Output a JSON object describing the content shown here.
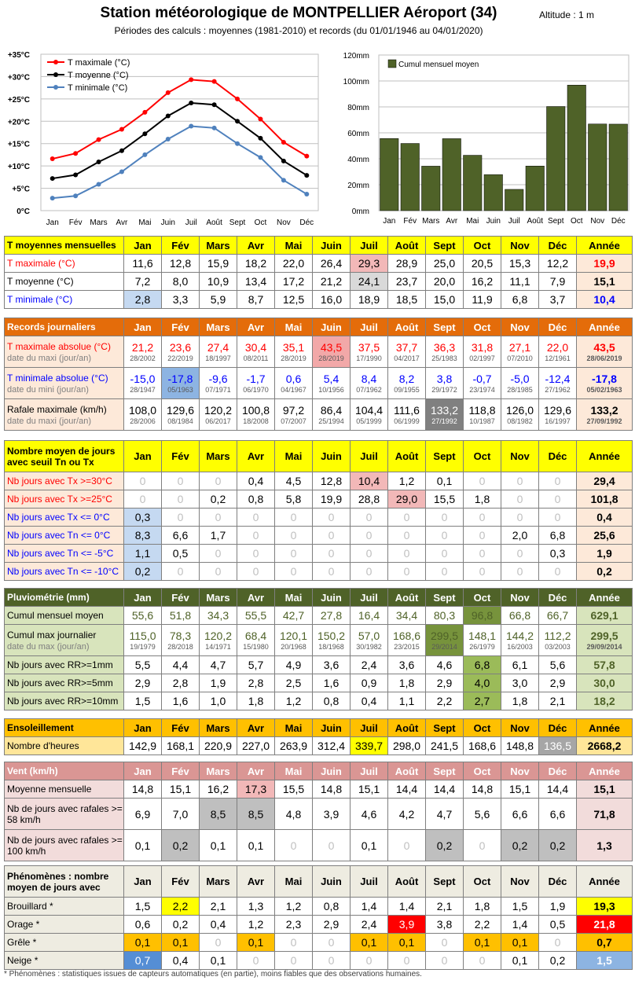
{
  "header": {
    "title": "Station météorologique de MONTPELLIER Aéroport (34)",
    "altitude": "Altitude : 1 m",
    "subtitle": "Périodes des calculs : moyennes (1981-2010) et records (du 01/01/1946 au 04/01/2020)"
  },
  "months": [
    "Jan",
    "Fév",
    "Mars",
    "Avr",
    "Mai",
    "Juin",
    "Juil",
    "Août",
    "Sept",
    "Oct",
    "Nov",
    "Déc"
  ],
  "year_label": "Année",
  "chart_data": [
    {
      "type": "line",
      "categories": [
        "Jan",
        "Fév",
        "Mars",
        "Avr",
        "Mai",
        "Juin",
        "Juil",
        "Août",
        "Sept",
        "Oct",
        "Nov",
        "Déc"
      ],
      "series": [
        {
          "name": "T maximale (°C)",
          "color": "#ff0000",
          "values": [
            11.6,
            12.8,
            15.9,
            18.2,
            22.0,
            26.4,
            29.3,
            28.9,
            25.0,
            20.5,
            15.3,
            12.2
          ]
        },
        {
          "name": "T moyenne (°C)",
          "color": "#000000",
          "values": [
            7.2,
            8.0,
            10.9,
            13.4,
            17.2,
            21.2,
            24.1,
            23.7,
            20.0,
            16.2,
            11.1,
            7.9
          ]
        },
        {
          "name": "T minimale (°C)",
          "color": "#4f81bd",
          "values": [
            2.8,
            3.3,
            5.9,
            8.7,
            12.5,
            16.0,
            18.9,
            18.5,
            15.0,
            11.9,
            6.8,
            3.7
          ]
        }
      ],
      "ylim": [
        0,
        35
      ],
      "yticks": [
        "0°C",
        "+5°C",
        "+10°C",
        "+15°C",
        "+20°C",
        "+25°C",
        "+30°C",
        "+35°C"
      ],
      "grid": true,
      "legend": "top-left"
    },
    {
      "type": "bar",
      "categories": [
        "Jan",
        "Fév",
        "Mars",
        "Avr",
        "Mai",
        "Juin",
        "Juil",
        "Août",
        "Sept",
        "Oct",
        "Nov",
        "Déc"
      ],
      "series": [
        {
          "name": "Cumul mensuel moyen",
          "color": "#4f6228",
          "values": [
            55.6,
            51.8,
            34.3,
            55.5,
            42.7,
            27.8,
            16.4,
            34.4,
            80.3,
            96.8,
            66.8,
            66.7
          ]
        }
      ],
      "ylim": [
        0,
        120
      ],
      "yticks": [
        "0mm",
        "20mm",
        "40mm",
        "60mm",
        "80mm",
        "100mm",
        "120mm"
      ],
      "grid": true,
      "legend": "top-left"
    }
  ],
  "sections": [
    {
      "id": "tmoy",
      "top": 300,
      "header": "T moyennes mensuelles",
      "header_bg": "#ffff00",
      "header_color": "#000000",
      "rows": [
        {
          "label": "T maximale (°C)",
          "label_color": "#ff0000",
          "values": [
            "11,6",
            "12,8",
            "15,9",
            "18,2",
            "22,0",
            "26,4",
            "29,3",
            "28,9",
            "25,0",
            "20,5",
            "15,3",
            "12,2"
          ],
          "year": "19,9",
          "year_bg": "#fde9d9",
          "year_color": "#ff0000",
          "hl": {
            "6": "#f2b8b8"
          }
        },
        {
          "label": "T moyenne (°C)",
          "label_color": "#000000",
          "values": [
            "7,2",
            "8,0",
            "10,9",
            "13,4",
            "17,2",
            "21,2",
            "24,1",
            "23,7",
            "20,0",
            "16,2",
            "11,1",
            "7,9"
          ],
          "year": "15,1",
          "year_bg": "#fde9d9",
          "year_color": "#000000",
          "hl": {
            "6": "#d9d9d9"
          }
        },
        {
          "label": "T minimale (°C)",
          "label_color": "#0000ff",
          "values": [
            "2,8",
            "3,3",
            "5,9",
            "8,7",
            "12,5",
            "16,0",
            "18,9",
            "18,5",
            "15,0",
            "11,9",
            "6,8",
            "3,7"
          ],
          "year": "10,4",
          "year_bg": "#fde9d9",
          "year_color": "#0000ff",
          "hl": {
            "0": "#c5d9f1"
          }
        }
      ]
    },
    {
      "id": "records",
      "top": 404,
      "header": "Records journaliers",
      "header_bg": "#e46c0a",
      "header_color": "#ffffff",
      "rows": [
        {
          "label": "T maximale absolue (°C)",
          "sublabel": "date du maxi (jour/an)",
          "label_color": "#ff0000",
          "label_bg": "#fde9d9",
          "values": [
            "21,2",
            "23,6",
            "27,4",
            "30,4",
            "35,1",
            "43,5",
            "37,5",
            "37,7",
            "36,3",
            "31,8",
            "27,1",
            "22,0"
          ],
          "dates": [
            "28/2002",
            "22/2019",
            "18/1997",
            "08/2011",
            "28/2019",
            "28/2019",
            "17/1990",
            "04/2017",
            "25/1983",
            "02/1997",
            "07/2010",
            "12/1961"
          ],
          "value_color": "#ff0000",
          "year": "43,5",
          "year_date": "28/06/2019",
          "year_color": "#ff0000",
          "year_bg": "#fde9d9",
          "hl": {
            "5": "#f2a8a8"
          }
        },
        {
          "label": "T minimale absolue (°C)",
          "sublabel": "date du mini (jour/an)",
          "label_color": "#0000ff",
          "label_bg": "#fde9d9",
          "values": [
            "-15,0",
            "-17,8",
            "-9,6",
            "-1,7",
            "0,6",
            "5,4",
            "8,4",
            "8,2",
            "3,8",
            "-0,7",
            "-5,0",
            "-12,4"
          ],
          "dates": [
            "28/1947",
            "05/1963",
            "07/1971",
            "06/1970",
            "04/1967",
            "10/1956",
            "07/1962",
            "09/1955",
            "29/1972",
            "23/1974",
            "28/1985",
            "27/1962"
          ],
          "value_color": "#0000ff",
          "year": "-17,8",
          "year_date": "05/02/1963",
          "year_color": "#0000ff",
          "year_bg": "#fde9d9",
          "hl": {
            "1": "#8db4e2"
          }
        },
        {
          "label": "Rafale maximale (km/h)",
          "sublabel": "date du maxi (jour/an)",
          "label_color": "#000000",
          "label_bg": "#fde9d9",
          "values": [
            "108,0",
            "129,6",
            "120,2",
            "100,8",
            "97,2",
            "86,4",
            "104,4",
            "111,6",
            "133,2",
            "118,8",
            "126,0",
            "129,6"
          ],
          "dates": [
            "28/2006",
            "08/1984",
            "06/2017",
            "18/2008",
            "07/2007",
            "25/1994",
            "05/1999",
            "06/1999",
            "27/1992",
            "10/1987",
            "08/1982",
            "16/1997"
          ],
          "value_color": "#000000",
          "year": "133,2",
          "year_date": "27/09/1992",
          "year_color": "#000000",
          "year_bg": "#fde9d9",
          "hl": {
            "8": "#808080"
          }
        }
      ]
    },
    {
      "id": "jours",
      "top": 560,
      "header": "Nombre moyen de jours avec seuil Tn ou Tx",
      "header_bg": "#ffff00",
      "header_color": "#000000",
      "header_tall": true,
      "rows": [
        {
          "label": "Nb jours avec Tx >=30°C",
          "label_color": "#ff0000",
          "label_bg": "#fde9d9",
          "values": [
            "0",
            "0",
            "0",
            "0,4",
            "4,5",
            "12,8",
            "10,4",
            "1,2",
            "0,1",
            "0",
            "0",
            "0"
          ],
          "year": "29,4",
          "year_bg": "#fde9d9",
          "hl": {
            "6": "#f2b8b8"
          }
        },
        {
          "label": "Nb jours avec Tx >=25°C",
          "label_color": "#ff0000",
          "label_bg": "#fde9d9",
          "values": [
            "0",
            "0",
            "0,2",
            "0,8",
            "5,8",
            "19,9",
            "28,8",
            "29,0",
            "15,5",
            "1,8",
            "0",
            "0"
          ],
          "year": "101,8",
          "year_bg": "#fde9d9",
          "hl": {
            "7": "#f2b8b8"
          }
        },
        {
          "label": "Nb jours avec Tx <= 0°C",
          "label_color": "#0000ff",
          "label_bg": "#fde9d9",
          "values": [
            "0,3",
            "0",
            "0",
            "0",
            "0",
            "0",
            "0",
            "0",
            "0",
            "0",
            "0",
            "0"
          ],
          "year": "0,4",
          "year_bg": "#fde9d9",
          "hl": {
            "0": "#c5d9f1"
          }
        },
        {
          "label": "Nb jours avec Tn <= 0°C",
          "label_color": "#0000ff",
          "label_bg": "#fde9d9",
          "values": [
            "8,3",
            "6,6",
            "1,7",
            "0",
            "0",
            "0",
            "0",
            "0",
            "0",
            "0",
            "2,0",
            "6,8"
          ],
          "year": "25,6",
          "year_bg": "#fde9d9",
          "hl": {
            "0": "#c5d9f1"
          }
        },
        {
          "label": "Nb jours avec Tn <= -5°C",
          "label_color": "#0000ff",
          "label_bg": "#fde9d9",
          "values": [
            "1,1",
            "0,5",
            "0",
            "0",
            "0",
            "0",
            "0",
            "0",
            "0",
            "0",
            "0",
            "0,3"
          ],
          "year": "1,9",
          "year_bg": "#fde9d9",
          "hl": {
            "0": "#c5d9f1"
          }
        },
        {
          "label": "Nb jours avec Tn <= -10°C",
          "label_color": "#0000ff",
          "label_bg": "#fde9d9",
          "values": [
            "0,2",
            "0",
            "0",
            "0",
            "0",
            "0",
            "0",
            "0",
            "0",
            "0",
            "0",
            "0"
          ],
          "year": "0,2",
          "year_bg": "#fde9d9",
          "hl": {
            "0": "#c5d9f1"
          }
        }
      ]
    },
    {
      "id": "pluvio",
      "top": 748,
      "header": "Pluviométrie (mm)",
      "header_bg": "#4f6228",
      "header_color": "#ffffff",
      "rows": [
        {
          "label": "Cumul mensuel moyen",
          "label_color": "#000000",
          "label_bg": "#d8e4bc",
          "values": [
            "55,6",
            "51,8",
            "34,3",
            "55,5",
            "42,7",
            "27,8",
            "16,4",
            "34,4",
            "80,3",
            "96,8",
            "66,8",
            "66,7"
          ],
          "value_color": "#4f6228",
          "year": "629,1",
          "year_color": "#4f6228",
          "year_bg": "#d8e4bc",
          "hl": {
            "9": "#77933c"
          }
        },
        {
          "label": "Cumul max journalier",
          "sublabel": "date du max (jour/an)",
          "label_color": "#000000",
          "label_bg": "#d8e4bc",
          "values": [
            "115,0",
            "78,3",
            "120,2",
            "68,4",
            "120,1",
            "150,2",
            "57,0",
            "168,6",
            "299,5",
            "148,1",
            "144,2",
            "112,2"
          ],
          "dates": [
            "19/1979",
            "28/2018",
            "14/1971",
            "15/1980",
            "20/1968",
            "18/1968",
            "30/1982",
            "23/2015",
            "29/2014",
            "26/1979",
            "16/2003",
            "03/2003"
          ],
          "value_color": "#4f6228",
          "year": "299,5",
          "year_date": "29/09/2014",
          "year_color": "#4f6228",
          "year_bg": "#d8e4bc",
          "hl": {
            "8": "#77933c"
          }
        },
        {
          "label": "Nb jours avec RR>=1mm",
          "label_color": "#000000",
          "label_bg": "#d8e4bc",
          "values": [
            "5,5",
            "4,4",
            "4,7",
            "5,7",
            "4,9",
            "3,6",
            "2,4",
            "3,6",
            "4,6",
            "6,8",
            "6,1",
            "5,6"
          ],
          "year": "57,8",
          "year_color": "#4f6228",
          "year_bg": "#d8e4bc",
          "hl": {
            "9": "#9bbb59"
          }
        },
        {
          "label": "Nb jours avec RR>=5mm",
          "label_color": "#000000",
          "label_bg": "#d8e4bc",
          "values": [
            "2,9",
            "2,8",
            "1,9",
            "2,8",
            "2,5",
            "1,6",
            "0,9",
            "1,8",
            "2,9",
            "4,0",
            "3,0",
            "2,9"
          ],
          "year": "30,0",
          "year_color": "#4f6228",
          "year_bg": "#d8e4bc",
          "hl": {
            "9": "#9bbb59"
          }
        },
        {
          "label": "Nb jours avec RR>=10mm",
          "label_color": "#000000",
          "label_bg": "#d8e4bc",
          "values": [
            "1,5",
            "1,6",
            "1,0",
            "1,8",
            "1,2",
            "0,8",
            "0,4",
            "1,1",
            "2,2",
            "2,7",
            "1,8",
            "2,1"
          ],
          "year": "18,2",
          "year_color": "#4f6228",
          "year_bg": "#d8e4bc",
          "hl": {
            "9": "#9bbb59"
          }
        }
      ]
    },
    {
      "id": "soleil",
      "top": 914,
      "header": "Ensoleillement",
      "header_bg": "#ffc000",
      "header_color": "#000000",
      "rows": [
        {
          "label": "Nombre d'heures",
          "label_color": "#000000",
          "label_bg": "#ffe699",
          "values": [
            "142,9",
            "168,1",
            "220,9",
            "227,0",
            "263,9",
            "312,4",
            "339,7",
            "298,0",
            "241,5",
            "168,6",
            "148,8",
            "136,5"
          ],
          "year": "2668,2",
          "year_color": "#000000",
          "year_bg": "#ffe699",
          "hl": {
            "6": "#ffff00",
            "11": "#a6a6a6"
          },
          "hl_color": {
            "11": "#ffffff"
          }
        }
      ]
    },
    {
      "id": "vent",
      "top": 969,
      "header": "Vent (km/h)",
      "header_bg": "#da9694",
      "header_color": "#ffffff",
      "rows": [
        {
          "label": "Moyenne mensuelle",
          "label_color": "#000000",
          "label_bg": "#f2dcdb",
          "values": [
            "14,8",
            "15,1",
            "16,2",
            "17,3",
            "15,5",
            "14,8",
            "15,1",
            "14,4",
            "14,4",
            "14,8",
            "15,1",
            "14,4"
          ],
          "year": "15,1",
          "year_bg": "#f2dcdb",
          "hl": {
            "3": "#f2b8b8"
          }
        },
        {
          "label": "Nb de jours avec rafales >= 58 km/h",
          "label_color": "#000000",
          "label_bg": "#f2dcdb",
          "tall": true,
          "values": [
            "6,9",
            "7,0",
            "8,5",
            "8,5",
            "4,8",
            "3,9",
            "4,6",
            "4,2",
            "4,7",
            "5,6",
            "6,6",
            "6,6"
          ],
          "year": "71,8",
          "year_bg": "#f2dcdb",
          "hl": {
            "2": "#bfbfbf",
            "3": "#bfbfbf"
          }
        },
        {
          "label": "Nb de jours avec rafales >= 100 km/h",
          "label_color": "#000000",
          "label_bg": "#f2dcdb",
          "tall": true,
          "values": [
            "0,1",
            "0,2",
            "0,1",
            "0,1",
            "0",
            "0",
            "0,1",
            "0",
            "0,2",
            "0",
            "0,2",
            "0,2"
          ],
          "year": "1,3",
          "year_bg": "#f2dcdb",
          "hl": {
            "1": "#bfbfbf",
            "8": "#bfbfbf",
            "10": "#bfbfbf",
            "11": "#bfbfbf"
          }
        }
      ]
    },
    {
      "id": "pheno",
      "top": 1101,
      "header": "Phénomènes : nombre moyen de jours avec",
      "header_bg": "#eeece1",
      "header_color": "#000000",
      "header_tall": true,
      "rows": [
        {
          "label": "Brouillard *",
          "label_color": "#000000",
          "label_bg": "#eeece1",
          "values": [
            "1,5",
            "2,2",
            "2,1",
            "1,3",
            "1,2",
            "0,8",
            "1,4",
            "1,4",
            "2,1",
            "1,8",
            "1,5",
            "1,9"
          ],
          "year": "19,3",
          "year_bg": "#ffff00",
          "hl": {
            "1": "#ffff00"
          }
        },
        {
          "label": "Orage *",
          "label_color": "#000000",
          "label_bg": "#eeece1",
          "values": [
            "0,6",
            "0,2",
            "0,4",
            "1,2",
            "2,3",
            "2,9",
            "2,4",
            "3,9",
            "3,8",
            "2,2",
            "1,4",
            "0,5"
          ],
          "year": "21,8",
          "year_bg": "#ff0000",
          "year_color": "#ffffff",
          "hl": {
            "7": "#ff0000"
          },
          "hl_color": {
            "7": "#ffffff"
          }
        },
        {
          "label": "Grêle *",
          "label_color": "#000000",
          "label_bg": "#eeece1",
          "values": [
            "0,1",
            "0,1",
            "0",
            "0,1",
            "0",
            "0",
            "0,1",
            "0,1",
            "0",
            "0,1",
            "0,1",
            "0"
          ],
          "year": "0,7",
          "year_bg": "#ffc000",
          "hl": {
            "0": "#ffc000",
            "1": "#ffc000",
            "3": "#ffc000",
            "6": "#ffc000",
            "7": "#ffc000",
            "9": "#ffc000",
            "10": "#ffc000"
          }
        },
        {
          "label": "Neige *",
          "label_color": "#000000",
          "label_bg": "#eeece1",
          "values": [
            "0,7",
            "0,4",
            "0,1",
            "0",
            "0",
            "0",
            "0",
            "0",
            "0",
            "0",
            "0,1",
            "0,2"
          ],
          "year": "1,5",
          "year_bg": "#8db4e2",
          "year_color": "#ffffff",
          "hl": {
            "0": "#558ed5"
          },
          "hl_color": {
            "0": "#ffffff"
          }
        }
      ]
    }
  ],
  "footnote": "* Phénomènes : statistiques issues de capteurs automatiques (en partie), moins fiables que des observations humaines."
}
